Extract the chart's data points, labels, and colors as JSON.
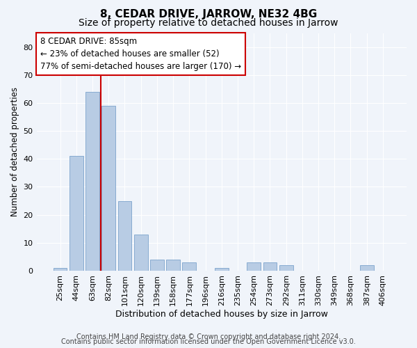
{
  "title": "8, CEDAR DRIVE, JARROW, NE32 4BG",
  "subtitle": "Size of property relative to detached houses in Jarrow",
  "xlabel": "Distribution of detached houses by size in Jarrow",
  "ylabel": "Number of detached properties",
  "categories": [
    "25sqm",
    "44sqm",
    "63sqm",
    "82sqm",
    "101sqm",
    "120sqm",
    "139sqm",
    "158sqm",
    "177sqm",
    "196sqm",
    "216sqm",
    "235sqm",
    "254sqm",
    "273sqm",
    "292sqm",
    "311sqm",
    "330sqm",
    "349sqm",
    "368sqm",
    "387sqm",
    "406sqm"
  ],
  "values": [
    1,
    41,
    64,
    59,
    25,
    13,
    4,
    4,
    3,
    0,
    1,
    0,
    3,
    3,
    2,
    0,
    0,
    0,
    0,
    2,
    0
  ],
  "bar_color": "#b8cce4",
  "bar_edge_color": "#7ba3cc",
  "vline_x": 3.5,
  "vline_color": "#cc0000",
  "ylim": [
    0,
    85
  ],
  "yticks": [
    0,
    10,
    20,
    30,
    40,
    50,
    60,
    70,
    80
  ],
  "annotation_line1": "8 CEDAR DRIVE: 85sqm",
  "annotation_line2": "← 23% of detached houses are smaller (52)",
  "annotation_line3": "77% of semi-detached houses are larger (170) →",
  "footer_line1": "Contains HM Land Registry data © Crown copyright and database right 2024.",
  "footer_line2": "Contains public sector information licensed under the Open Government Licence v3.0.",
  "bg_color": "#f0f4fa",
  "plot_bg_color": "#f0f4fa",
  "title_fontsize": 11,
  "subtitle_fontsize": 10,
  "xlabel_fontsize": 9,
  "ylabel_fontsize": 8.5,
  "footer_fontsize": 7,
  "tick_fontsize": 8,
  "annot_fontsize": 8.5
}
